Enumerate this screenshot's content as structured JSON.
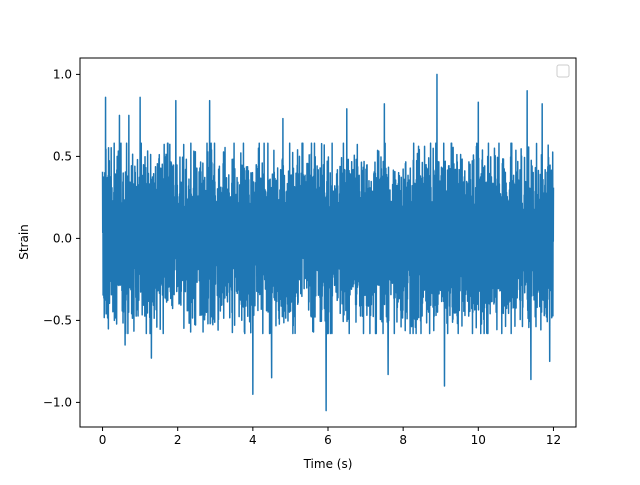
{
  "chart_data": {
    "type": "line",
    "title": "",
    "xlabel": "Time (s)",
    "ylabel": "Strain",
    "xlim": [
      -0.6,
      12.6
    ],
    "ylim": [
      -1.15,
      1.1
    ],
    "xticks": [
      0,
      2,
      4,
      6,
      8,
      10,
      12
    ],
    "yticks": [
      -1.0,
      -0.5,
      0.0,
      0.5,
      1.0
    ],
    "xtick_labels": [
      "0",
      "2",
      "4",
      "6",
      "8",
      "10",
      "12"
    ],
    "ytick_labels": [
      "−1.0",
      "−0.5",
      "0.0",
      "0.5",
      "1.0"
    ],
    "grid": false,
    "legend": {
      "location": "top-right",
      "entries": []
    },
    "series": [
      {
        "color": "#1f77b4",
        "x_range": [
          0,
          12
        ],
        "typical_amplitude": 0.45,
        "peaks": [
          {
            "x": 0.08,
            "y": 0.86
          },
          {
            "x": 0.45,
            "y": 0.75
          },
          {
            "x": 0.7,
            "y": 0.75
          },
          {
            "x": 1.0,
            "y": 0.86
          },
          {
            "x": 1.3,
            "y": 0.83
          },
          {
            "x": 1.95,
            "y": 0.84
          },
          {
            "x": 2.85,
            "y": 0.84
          },
          {
            "x": 4.8,
            "y": 0.73
          },
          {
            "x": 6.5,
            "y": 0.79
          },
          {
            "x": 7.5,
            "y": 0.82
          },
          {
            "x": 8.9,
            "y": 1.0
          },
          {
            "x": 10.0,
            "y": 0.83
          },
          {
            "x": 11.3,
            "y": 0.9
          },
          {
            "x": 11.7,
            "y": 0.82
          }
        ],
        "troughs": [
          {
            "x": 0.6,
            "y": -0.65
          },
          {
            "x": 1.3,
            "y": -0.73
          },
          {
            "x": 4.0,
            "y": -0.95
          },
          {
            "x": 4.5,
            "y": -0.85
          },
          {
            "x": 5.95,
            "y": -1.05
          },
          {
            "x": 7.6,
            "y": -0.83
          },
          {
            "x": 9.1,
            "y": -0.9
          },
          {
            "x": 11.4,
            "y": -0.86
          },
          {
            "x": 11.9,
            "y": -0.75
          }
        ]
      }
    ]
  }
}
